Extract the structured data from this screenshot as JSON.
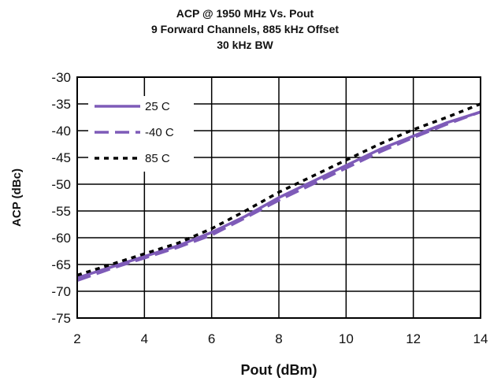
{
  "chart_data": {
    "type": "line",
    "title_lines": [
      "ACP @ 1950 MHz Vs. Pout",
      "9 Forward Channels, 885 kHz Offset",
      "30 kHz BW"
    ],
    "xlabel": "Pout (dBm)",
    "ylabel": "ACP (dBc)",
    "xlim": [
      2,
      14
    ],
    "ylim": [
      -75,
      -30
    ],
    "xticks": [
      2,
      4,
      6,
      8,
      10,
      12,
      14
    ],
    "yticks": [
      -30,
      -35,
      -40,
      -45,
      -50,
      -55,
      -60,
      -65,
      -70,
      -75
    ],
    "grid": true,
    "legend_position": "top-left",
    "series": [
      {
        "name": "25 C",
        "color": "#7e5bb8",
        "dash": "solid",
        "x": [
          2,
          3,
          4,
          5,
          6,
          7,
          8,
          9,
          10,
          11,
          12,
          13,
          14
        ],
        "y": [
          -67.5,
          -65.5,
          -63.5,
          -61.5,
          -59.0,
          -56.0,
          -52.5,
          -49.5,
          -46.5,
          -43.5,
          -41.0,
          -38.5,
          -36.5
        ]
      },
      {
        "name": "-40 C",
        "color": "#7e5bb8",
        "dash": "long-dash",
        "x": [
          2,
          3,
          4,
          5,
          6,
          7,
          8,
          9,
          10,
          11,
          12,
          13,
          14
        ],
        "y": [
          -68.0,
          -65.8,
          -63.8,
          -61.8,
          -59.5,
          -56.3,
          -53.0,
          -50.0,
          -47.0,
          -44.0,
          -41.3,
          -38.8,
          -36.5
        ]
      },
      {
        "name": "85 C",
        "color": "#000000",
        "dash": "dotted",
        "x": [
          2,
          3,
          4,
          5,
          6,
          7,
          8,
          9,
          10,
          11,
          12,
          13,
          14
        ],
        "y": [
          -67.0,
          -65.0,
          -63.0,
          -61.0,
          -58.3,
          -55.0,
          -51.5,
          -48.5,
          -45.5,
          -42.5,
          -39.8,
          -37.5,
          -35.0
        ]
      }
    ]
  }
}
